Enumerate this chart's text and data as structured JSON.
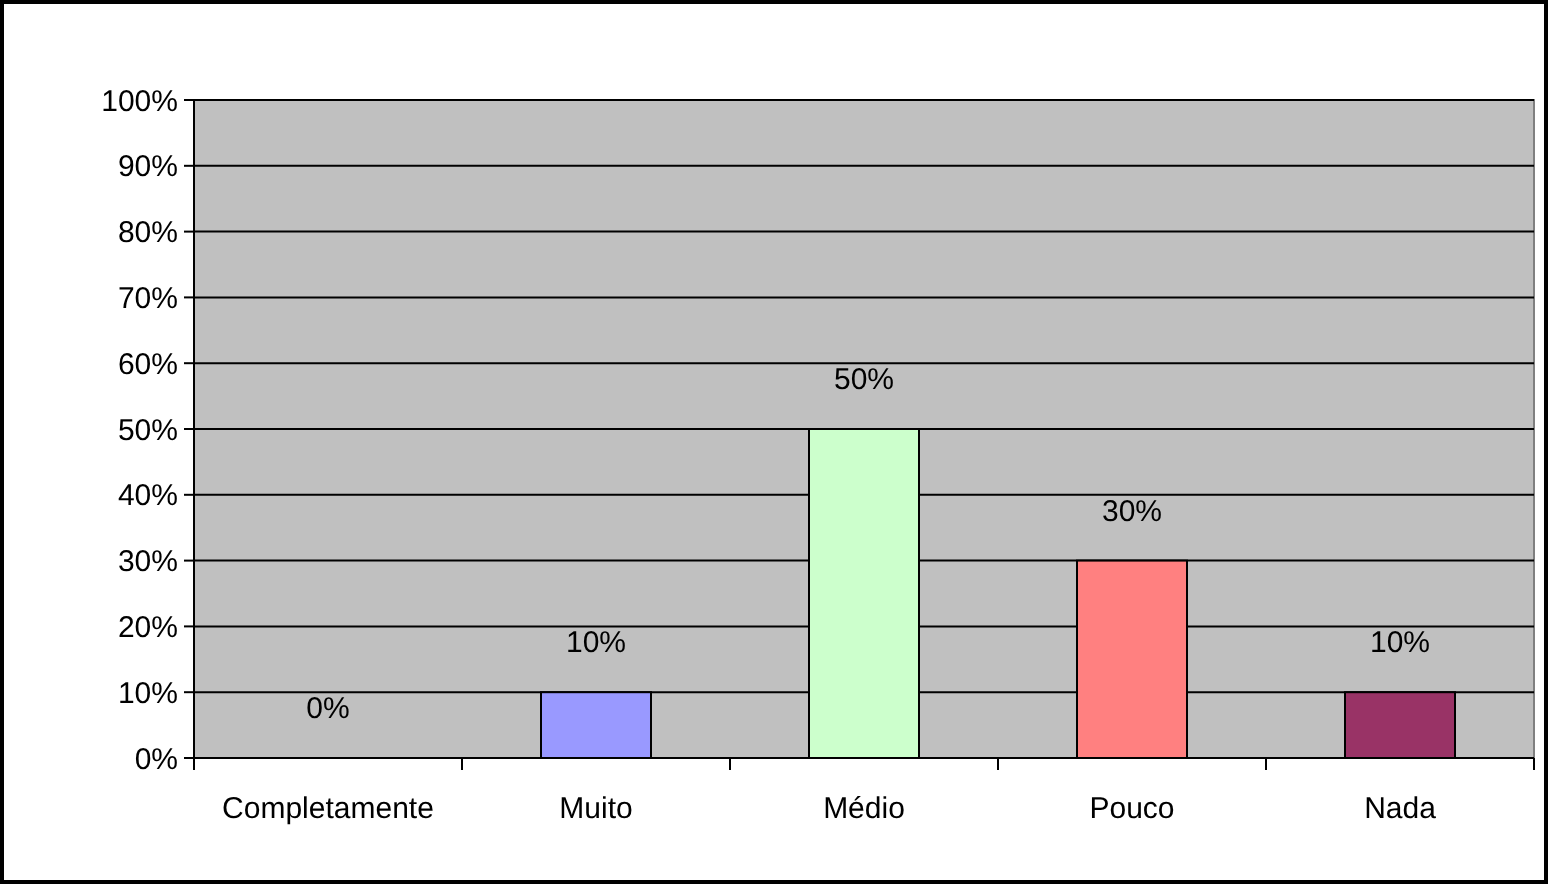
{
  "chart_data": {
    "type": "bar",
    "categories": [
      "Completamente",
      "Muito",
      "Médio",
      "Pouco",
      "Nada"
    ],
    "values": [
      0,
      10,
      50,
      30,
      10
    ],
    "colors": [
      "#9999ff",
      "#9999ff",
      "#ccffcc",
      "#ff8080",
      "#993366"
    ],
    "value_labels": [
      "0%",
      "10%",
      "50%",
      "30%",
      "10%"
    ],
    "ylim": [
      0,
      100
    ],
    "yticks": [
      {
        "value": 0,
        "label": "0%"
      },
      {
        "value": 10,
        "label": "10%"
      },
      {
        "value": 20,
        "label": "20%"
      },
      {
        "value": 30,
        "label": "30%"
      },
      {
        "value": 40,
        "label": "40%"
      },
      {
        "value": 50,
        "label": "50%"
      },
      {
        "value": 60,
        "label": "60%"
      },
      {
        "value": 70,
        "label": "70%"
      },
      {
        "value": 80,
        "label": "80%"
      },
      {
        "value": 90,
        "label": "90%"
      },
      {
        "value": 100,
        "label": "100%"
      }
    ],
    "grid": "y"
  }
}
